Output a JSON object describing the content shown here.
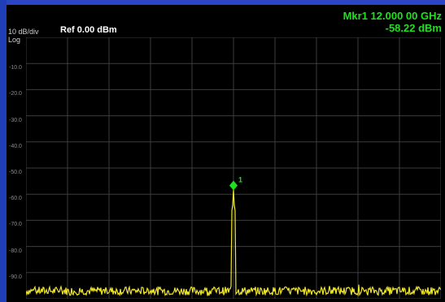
{
  "header": {
    "scale": "10 dB/div",
    "scale_type": "Log",
    "reference": "Ref 0.00 dBm"
  },
  "marker": {
    "title": "Mkr1 12.000 00 GHz",
    "value": "-58.22 dBm",
    "label": "1",
    "frequency_ghz": 12.0,
    "amplitude_dbm": -58.22,
    "color": "#1fe01f"
  },
  "colors": {
    "trace": "#f0e62a",
    "grid": "#3d3d3d",
    "frame_blue": "#1e3fb8",
    "marker": "#1fe01f"
  },
  "chart_data": {
    "type": "line",
    "ylim": [
      -100,
      0
    ],
    "y_ticks": [
      "-10.0",
      "-20.0",
      "-30.0",
      "-40.0",
      "-50.0",
      "-60.0",
      "-70.0",
      "-80.0",
      "-90.0"
    ],
    "x_divisions": 10,
    "y_divisions": 10,
    "grid": true,
    "series": [
      {
        "noise_floor_dbm": -97,
        "peak_x_fraction": 0.5,
        "peak_dbm": -58.22
      }
    ]
  }
}
